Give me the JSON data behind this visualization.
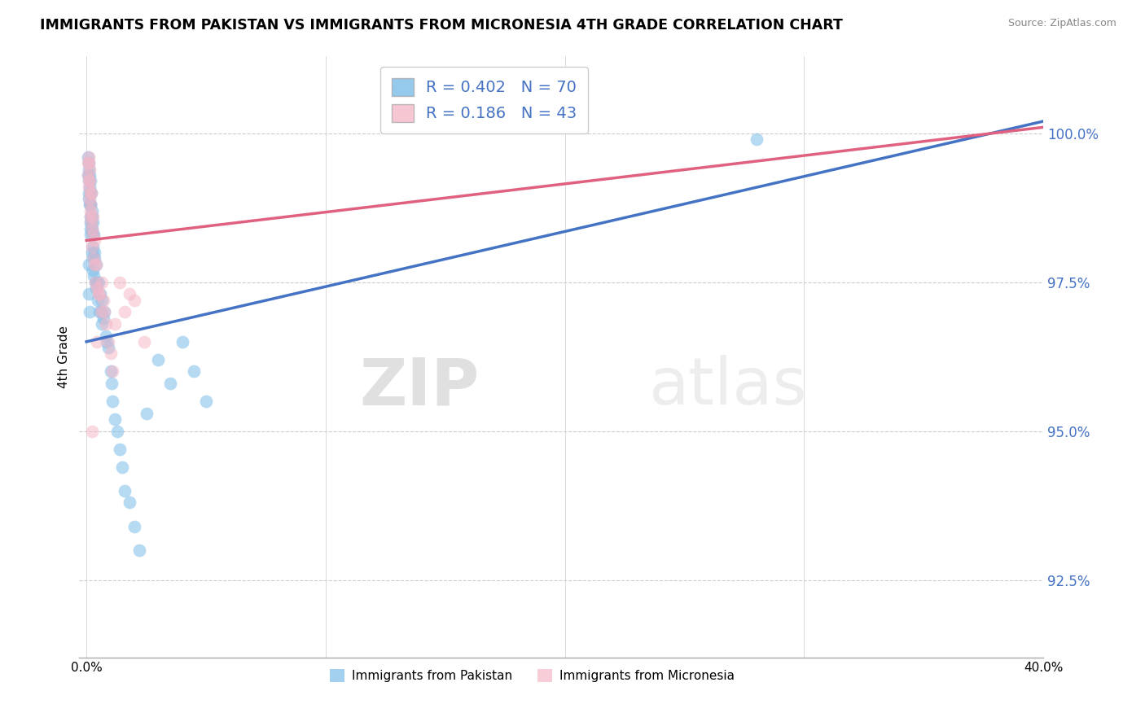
{
  "title": "IMMIGRANTS FROM PAKISTAN VS IMMIGRANTS FROM MICRONESIA 4TH GRADE CORRELATION CHART",
  "source": "Source: ZipAtlas.com",
  "xlabel_pakistan": "Immigrants from Pakistan",
  "xlabel_micronesia": "Immigrants from Micronesia",
  "ylabel": "4th Grade",
  "xlim": [
    -0.3,
    40.0
  ],
  "ylim": [
    91.2,
    101.3
  ],
  "yticks": [
    92.5,
    95.0,
    97.5,
    100.0
  ],
  "ytick_labels": [
    "92.5%",
    "95.0%",
    "97.5%",
    "100.0%"
  ],
  "xticks": [
    0.0,
    10.0,
    20.0,
    30.0,
    40.0
  ],
  "xtick_labels": [
    "0.0%",
    "",
    "",
    "",
    "40.0%"
  ],
  "pakistan_color": "#7bbde8",
  "micronesia_color": "#f5b8c8",
  "pakistan_line_color": "#4472c4",
  "micronesia_line_color": "#e06080",
  "R_pakistan": 0.402,
  "N_pakistan": 70,
  "R_micronesia": 0.186,
  "N_micronesia": 43,
  "watermark_zip": "ZIP",
  "watermark_atlas": "atlas",
  "pakistan_x": [
    0.05,
    0.05,
    0.08,
    0.08,
    0.08,
    0.1,
    0.1,
    0.12,
    0.12,
    0.14,
    0.15,
    0.15,
    0.16,
    0.16,
    0.17,
    0.18,
    0.18,
    0.18,
    0.2,
    0.2,
    0.22,
    0.22,
    0.22,
    0.24,
    0.25,
    0.25,
    0.26,
    0.28,
    0.28,
    0.3,
    0.3,
    0.32,
    0.35,
    0.38,
    0.4,
    0.42,
    0.45,
    0.48,
    0.5,
    0.55,
    0.58,
    0.6,
    0.65,
    0.65,
    0.7,
    0.75,
    0.8,
    0.85,
    0.9,
    1.0,
    1.05,
    1.1,
    1.2,
    1.3,
    1.4,
    1.5,
    1.6,
    1.8,
    2.0,
    2.2,
    2.5,
    3.0,
    3.5,
    4.0,
    4.5,
    5.0,
    0.08,
    0.1,
    0.12,
    28.0
  ],
  "pakistan_y": [
    99.6,
    99.3,
    99.5,
    99.2,
    98.9,
    99.4,
    99.0,
    99.3,
    98.8,
    99.1,
    98.8,
    98.5,
    99.0,
    98.6,
    98.4,
    99.2,
    98.8,
    98.3,
    99.0,
    98.5,
    98.7,
    98.4,
    98.0,
    98.6,
    98.3,
    97.9,
    98.5,
    98.1,
    97.7,
    98.3,
    97.6,
    97.9,
    98.0,
    97.5,
    97.8,
    97.4,
    97.5,
    97.2,
    97.5,
    97.0,
    97.3,
    97.0,
    97.2,
    96.8,
    96.9,
    97.0,
    96.6,
    96.5,
    96.4,
    96.0,
    95.8,
    95.5,
    95.2,
    95.0,
    94.7,
    94.4,
    94.0,
    93.8,
    93.4,
    93.0,
    95.3,
    96.2,
    95.8,
    96.5,
    96.0,
    95.5,
    97.8,
    97.3,
    97.0,
    99.9
  ],
  "micronesia_x": [
    0.05,
    0.07,
    0.08,
    0.09,
    0.1,
    0.1,
    0.12,
    0.12,
    0.14,
    0.15,
    0.16,
    0.17,
    0.18,
    0.2,
    0.2,
    0.22,
    0.24,
    0.25,
    0.28,
    0.3,
    0.32,
    0.35,
    0.38,
    0.4,
    0.45,
    0.5,
    0.55,
    0.6,
    0.65,
    0.7,
    0.75,
    0.8,
    0.9,
    1.0,
    1.1,
    1.2,
    1.4,
    1.6,
    1.8,
    2.0,
    2.4,
    0.22,
    0.45
  ],
  "micronesia_y": [
    99.5,
    99.3,
    99.5,
    99.2,
    99.6,
    99.1,
    99.4,
    98.9,
    99.2,
    98.8,
    99.0,
    98.6,
    98.7,
    99.0,
    98.5,
    98.4,
    98.1,
    98.6,
    98.3,
    97.9,
    98.2,
    97.8,
    97.5,
    97.8,
    97.4,
    97.3,
    97.3,
    97.0,
    97.5,
    97.2,
    97.0,
    96.8,
    96.5,
    96.3,
    96.0,
    96.8,
    97.5,
    97.0,
    97.3,
    97.2,
    96.5,
    95.0,
    96.5
  ],
  "pk_trend_x0": 0,
  "pk_trend_y0": 96.5,
  "pk_trend_x1": 40,
  "pk_trend_y1": 100.2,
  "mic_trend_x0": 0,
  "mic_trend_y0": 98.2,
  "mic_trend_x1": 40,
  "mic_trend_y1": 100.1
}
